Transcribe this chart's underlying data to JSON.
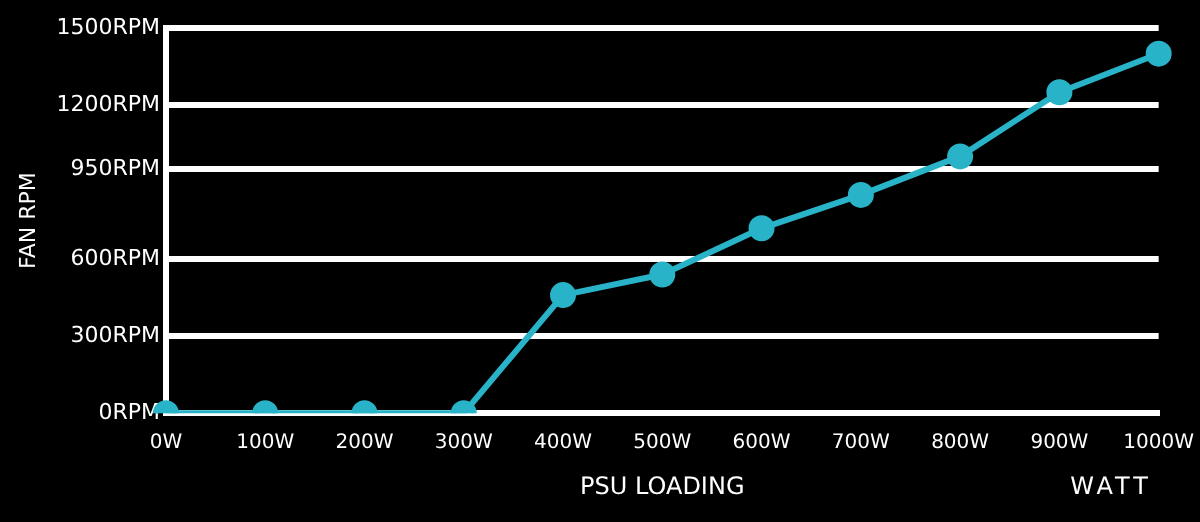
{
  "chart_data": {
    "type": "line",
    "xlabel": "PSU LOADING",
    "ylabel": "FAN RPM",
    "annotations": [
      "WATT"
    ],
    "categories": [
      "0W",
      "100W",
      "200W",
      "300W",
      "400W",
      "500W",
      "600W",
      "700W",
      "800W",
      "900W",
      "1000W"
    ],
    "series": [
      {
        "color": "#29b3c8",
        "values": [
          0,
          0,
          0,
          0,
          460,
          540,
          720,
          850,
          1000,
          1250,
          1400
        ]
      }
    ],
    "ylim": [
      0,
      1500
    ],
    "yticks": [
      {
        "value": 0,
        "label": "0RPM"
      },
      {
        "value": 300,
        "label": "300RPM"
      },
      {
        "value": 600,
        "label": "600RPM"
      },
      {
        "value": 950,
        "label": "950RPM"
      },
      {
        "value": 1200,
        "label": "1200RPM"
      },
      {
        "value": 1500,
        "label": "1500RPM"
      }
    ],
    "grid": "y",
    "legend": false,
    "marker": "circle",
    "line_style": "solid"
  }
}
